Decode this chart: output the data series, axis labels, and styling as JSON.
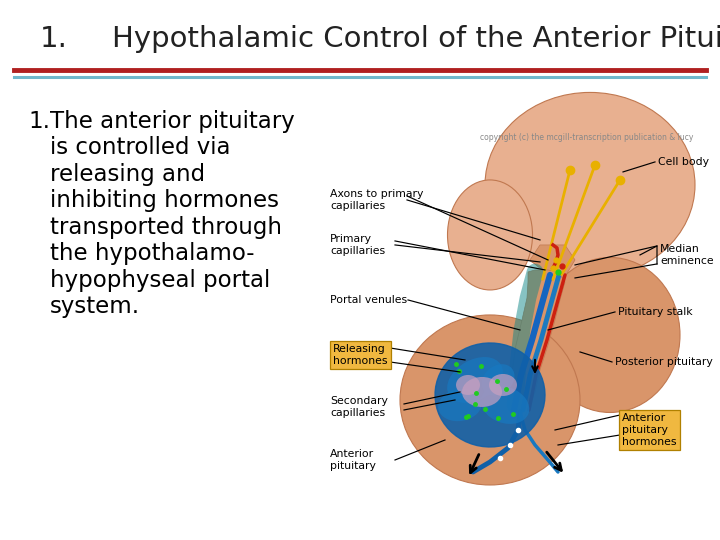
{
  "title": "Hypothalamic Control of the Anterior Pituitary",
  "title_number": "1.",
  "title_fontsize": 21,
  "title_color": "#222222",
  "bg_color": "#ffffff",
  "divider_color_top": "#b02020",
  "divider_color_bottom": "#70b8cc",
  "body_number": "1.",
  "body_text_lines": [
    "The anterior pituitary",
    "is controlled via",
    "releasing and",
    "inhibiting hormones",
    "transported through",
    "the hypothalamo-",
    "hypophyseal portal",
    "system."
  ],
  "body_fontsize": 16.5,
  "skin_color": "#D9956A",
  "skin_light": "#E8B090",
  "skin_dark": "#C07850",
  "blue_color": "#1060B0",
  "blue_dark": "#083878",
  "red_color": "#CC2010",
  "yellow_color": "#E8B000",
  "teal_color": "#20A0A0",
  "label_fontsize": 7.8,
  "box_color": "#F0B840",
  "box_edge": "#B08000",
  "copyright_text": "copyright (c) the mcgill-transcription publication & lucy",
  "copyright_fontsize": 5.5
}
